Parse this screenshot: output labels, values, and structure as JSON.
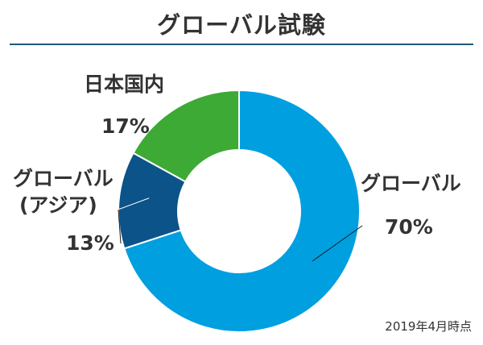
{
  "chart_data": {
    "type": "pie",
    "title": "グローバル試験",
    "categories": [
      "グローバル",
      "グローバル (アジア)",
      "日本国内"
    ],
    "values": [
      70,
      13,
      17
    ],
    "unit": "%",
    "labels": [
      {
        "lines": [
          "グローバル"
        ],
        "value": "70%"
      },
      {
        "lines": [
          "グローバル",
          "(アジア)"
        ],
        "value": "13%"
      },
      {
        "lines": [
          "日本国内"
        ],
        "value": "17%"
      }
    ],
    "colors": [
      "#009fe0",
      "#0b5389",
      "#3caa35"
    ],
    "donut": true,
    "grid": false,
    "note": "2019年4月時点"
  },
  "colors": {
    "title_rule": "#1f5a7a",
    "text": "#333333"
  }
}
